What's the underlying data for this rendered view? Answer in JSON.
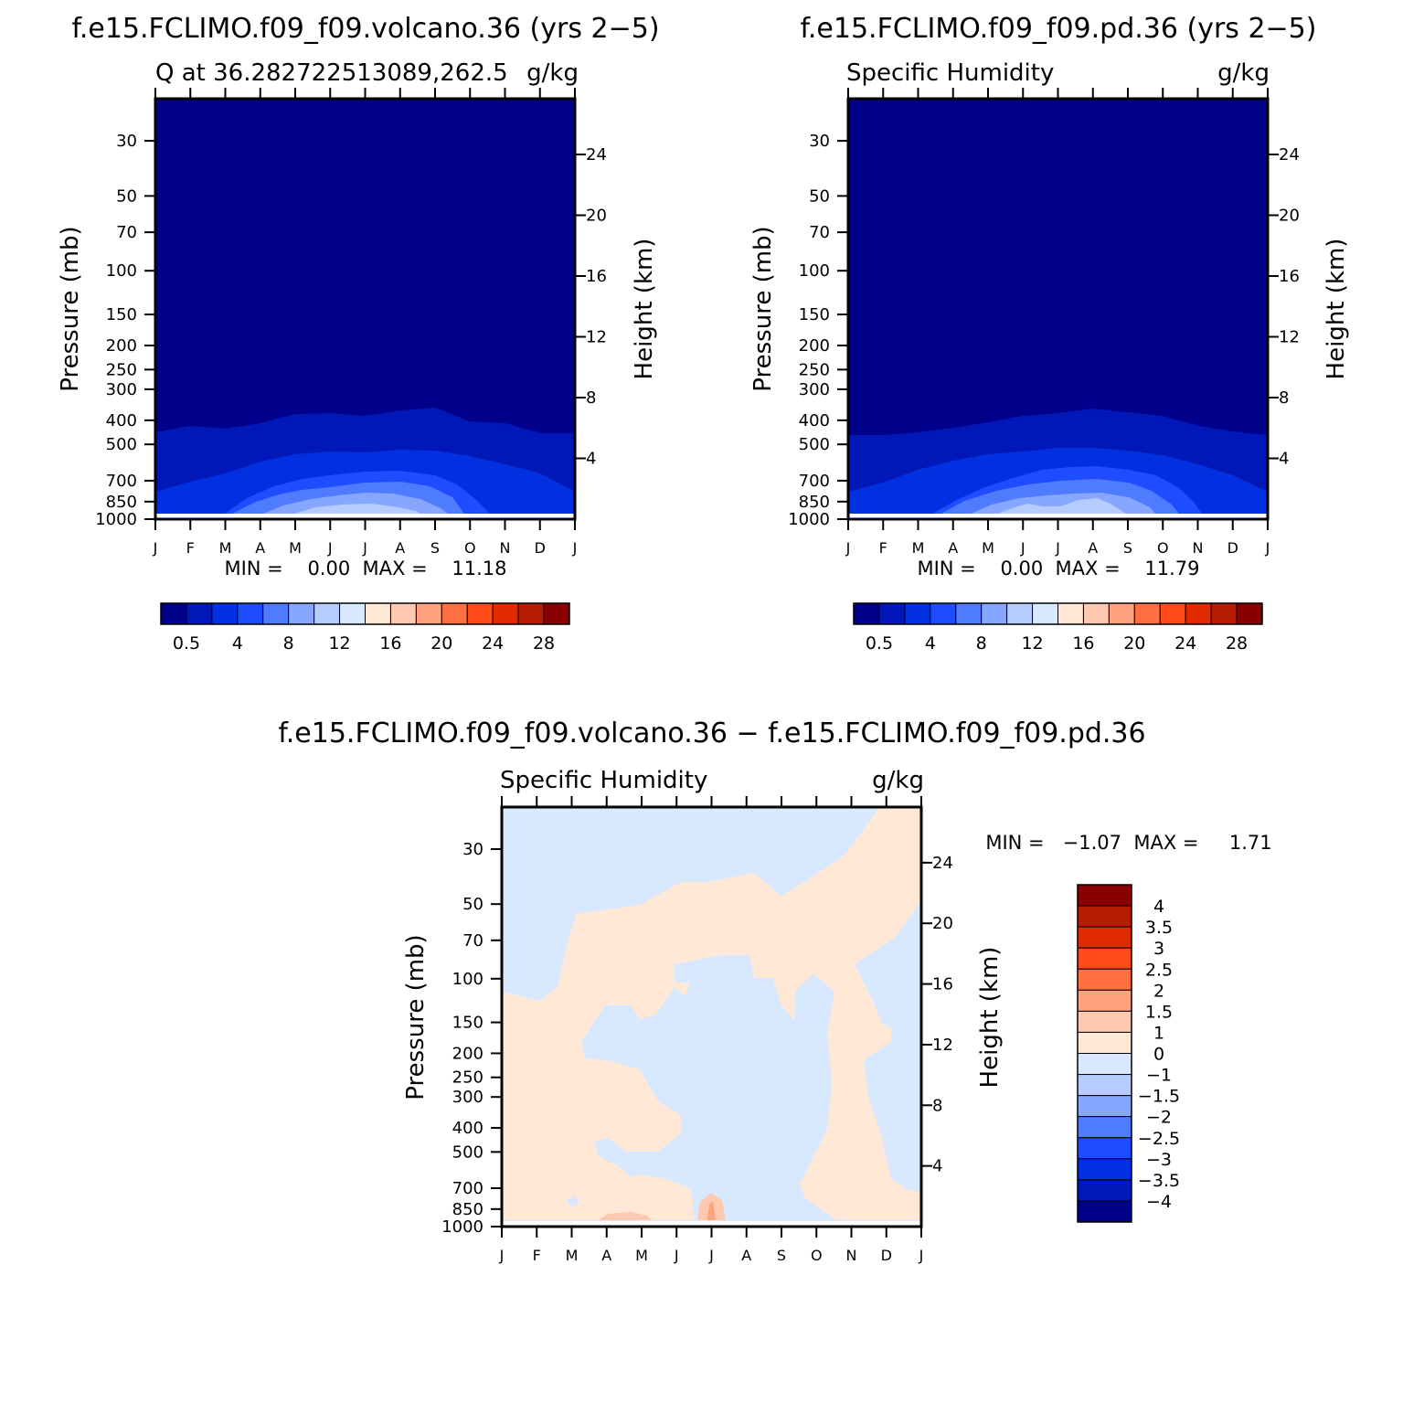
{
  "titles": {
    "volcano": "f.e15.FCLIMO.f09_f09.volcano.36 (yrs 2−5)",
    "pd": "f.e15.FCLIMO.f09_f09.pd.36 (yrs 2−5)",
    "diff": "f.e15.FCLIMO.f09_f09.volcano.36 − f.e15.FCLIMO.f09_f09.pd.36"
  },
  "panels": {
    "volcano": {
      "left_label": "Q at 36.282722513089,262.5",
      "right_label": "g/kg",
      "stats": "MIN =    0.00  MAX =    11.18"
    },
    "pd": {
      "left_label": "Specific Humidity",
      "right_label": "g/kg",
      "stats": "MIN =    0.00  MAX =    11.79"
    },
    "diff": {
      "left_label": "Specific Humidity",
      "right_label": "g/kg",
      "stats": "MIN =   −1.07  MAX =     1.71"
    }
  },
  "axes": {
    "ylabel_left": "Pressure (mb)",
    "ylabel_right": "Height (km)",
    "pressure_ticks": [
      "30",
      "50",
      "70",
      "100",
      "150",
      "200",
      "250",
      "300",
      "400",
      "500",
      "700",
      "850",
      "1000"
    ],
    "height_ticks": [
      "24",
      "20",
      "16",
      "12",
      "8",
      "4"
    ],
    "month_ticks": [
      "J",
      "F",
      "M",
      "A",
      "M",
      "J",
      "J",
      "A",
      "S",
      "O",
      "N",
      "D",
      "J"
    ]
  },
  "colorbar_top": {
    "labels": [
      "0.5",
      "4",
      "8",
      "12",
      "16",
      "20",
      "24",
      "28"
    ],
    "colors": [
      "#00008a",
      "#0018b8",
      "#0030e0",
      "#1f4cff",
      "#4f7bff",
      "#86a6ff",
      "#b6ccff",
      "#d8e8ff",
      "#ffe8d6",
      "#ffc8b0",
      "#ffa27d",
      "#ff7040",
      "#ff4a1a",
      "#e02a00",
      "#b81c00",
      "#8a0000"
    ]
  },
  "colorbar_diff": {
    "labels": [
      "4",
      "3.5",
      "3",
      "2.5",
      "2",
      "1.5",
      "1",
      "0",
      "−1",
      "−1.5",
      "−2",
      "−2.5",
      "−3",
      "−3.5",
      "−4"
    ],
    "colors": [
      "#8a0000",
      "#b81c00",
      "#e02a00",
      "#ff4a1a",
      "#ff7040",
      "#ffa27d",
      "#ffc8b0",
      "#ffe8d6",
      "#d8e8ff",
      "#b6ccff",
      "#86a6ff",
      "#4f7bff",
      "#1f4cff",
      "#0030e0",
      "#0018b8",
      "#00008a"
    ]
  },
  "chart_data": [
    {
      "type": "heatmap",
      "title": "f.e15.FCLIMO.f09_f09.volcano.36 (yrs 2−5)",
      "variable": "Q at 36.282722513089,262.5",
      "units": "g/kg",
      "x": [
        "J",
        "F",
        "M",
        "A",
        "M",
        "J",
        "J",
        "A",
        "S",
        "O",
        "N",
        "D",
        "J"
      ],
      "xlabel": "",
      "ylabel": "Pressure (mb)",
      "ylabel_right": "Height (km)",
      "ylim": [
        1000,
        20
      ],
      "min": 0.0,
      "max": 11.18,
      "contour_levels": [
        0.5,
        2,
        4,
        6,
        8,
        10,
        12,
        14,
        16,
        18,
        20,
        22,
        24,
        26,
        28
      ],
      "level_boundaries_mb": {
        "0.5": [
          460,
          440,
          445,
          430,
          400,
          390,
          400,
          385,
          375,
          420,
          430,
          470,
          470
        ],
        "2": [
          850,
          760,
          700,
          620,
          580,
          565,
          570,
          555,
          560,
          600,
          650,
          700,
          850
        ],
        "4": [
          950,
          950,
          950,
          850,
          730,
          700,
          680,
          680,
          700,
          770,
          950,
          950,
          950
        ],
        "6": [
          null,
          null,
          null,
          950,
          870,
          810,
          790,
          790,
          820,
          900,
          null,
          null,
          null
        ],
        "8": [
          null,
          null,
          null,
          null,
          940,
          890,
          870,
          880,
          900,
          960,
          null,
          null,
          null
        ],
        "10": [
          null,
          null,
          null,
          null,
          null,
          950,
          930,
          950,
          970,
          null,
          null,
          null,
          null
        ]
      }
    },
    {
      "type": "heatmap",
      "title": "f.e15.FCLIMO.f09_f09.pd.36 (yrs 2−5)",
      "variable": "Specific Humidity",
      "units": "g/kg",
      "x": [
        "J",
        "F",
        "M",
        "A",
        "M",
        "J",
        "J",
        "A",
        "S",
        "O",
        "N",
        "D",
        "J"
      ],
      "xlabel": "",
      "ylabel": "Pressure (mb)",
      "ylabel_right": "Height (km)",
      "ylim": [
        1000,
        20
      ],
      "min": 0.0,
      "max": 11.79,
      "contour_levels": [
        0.5,
        2,
        4,
        6,
        8,
        10,
        12,
        14,
        16,
        18,
        20,
        22,
        24,
        26,
        28
      ],
      "level_boundaries_mb": {
        "0.5": [
          480,
          470,
          460,
          440,
          420,
          400,
          400,
          390,
          400,
          410,
          440,
          470,
          480
        ],
        "2": [
          840,
          760,
          690,
          620,
          580,
          560,
          550,
          550,
          560,
          580,
          620,
          680,
          840
        ],
        "4": [
          950,
          950,
          950,
          860,
          740,
          700,
          680,
          680,
          680,
          730,
          950,
          950,
          950
        ],
        "6": [
          null,
          null,
          null,
          950,
          880,
          810,
          790,
          780,
          810,
          880,
          null,
          null,
          null
        ],
        "8": [
          null,
          null,
          null,
          null,
          950,
          890,
          880,
          870,
          900,
          960,
          null,
          null,
          null
        ],
        "10": [
          null,
          null,
          null,
          null,
          null,
          930,
          950,
          920,
          960,
          null,
          null,
          null,
          null
        ]
      }
    },
    {
      "type": "heatmap",
      "title": "f.e15.FCLIMO.f09_f09.volcano.36 − f.e15.FCLIMO.f09_f09.pd.36",
      "variable": "Specific Humidity",
      "units": "g/kg",
      "x": [
        "J",
        "F",
        "M",
        "A",
        "M",
        "J",
        "J",
        "A",
        "S",
        "O",
        "N",
        "D",
        "J"
      ],
      "xlabel": "",
      "ylabel": "Pressure (mb)",
      "ylabel_right": "Height (km)",
      "ylim": [
        1000,
        20
      ],
      "min": -1.07,
      "max": 1.71,
      "contour_levels": [
        -4,
        -3.5,
        -3,
        -2.5,
        -2,
        -1.5,
        -1,
        0,
        1,
        1.5,
        2,
        2.5,
        3,
        3.5,
        4
      ]
    }
  ]
}
